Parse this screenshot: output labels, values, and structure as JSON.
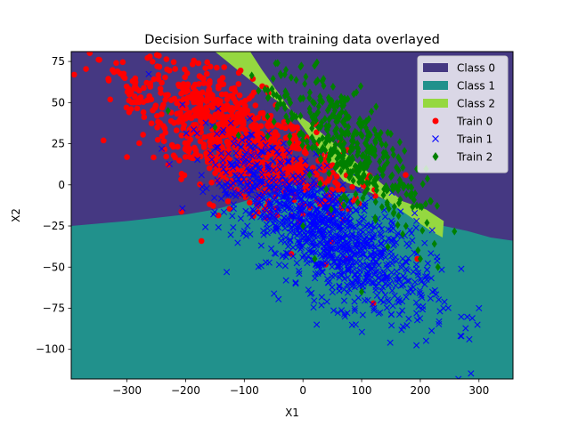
{
  "chart_data": {
    "type": "scatter",
    "title": "Decision Surface with training data overlayed",
    "xlabel": "X1",
    "ylabel": "X2",
    "xlim": [
      -395,
      358
    ],
    "ylim": [
      -118,
      81
    ],
    "xticks": [
      -300,
      -200,
      -100,
      0,
      100,
      200,
      300
    ],
    "yticks": [
      75,
      50,
      25,
      0,
      -25,
      -50,
      -75,
      -100
    ],
    "grid": false,
    "legend_position": "top-right",
    "regions": [
      {
        "name": "Class 0",
        "color": "#453882"
      },
      {
        "name": "Class 1",
        "color": "#21918c"
      },
      {
        "name": "Class 2",
        "color": "#95d840"
      }
    ],
    "class2_region_boundary": [
      [
        -150,
        81
      ],
      [
        -60,
        55
      ],
      [
        10,
        38
      ],
      [
        70,
        20
      ],
      [
        120,
        5
      ],
      [
        170,
        -10
      ],
      [
        210,
        -15
      ],
      [
        240,
        -22
      ],
      [
        238,
        -32
      ],
      [
        218,
        -28
      ],
      [
        185,
        -20
      ],
      [
        145,
        -10
      ],
      [
        100,
        -2
      ],
      [
        70,
        2
      ],
      [
        40,
        15
      ],
      [
        0,
        35
      ],
      [
        -40,
        55
      ],
      [
        -70,
        70
      ],
      [
        -90,
        81
      ]
    ],
    "class1_region_boundary_left": [
      [
        -395,
        -25
      ],
      [
        -300,
        -22
      ],
      [
        -200,
        -18
      ],
      [
        -150,
        -15
      ],
      [
        -100,
        -10
      ],
      [
        -50,
        -5
      ],
      [
        -20,
        0
      ],
      [
        10,
        0
      ],
      [
        50,
        -5
      ],
      [
        100,
        -5
      ],
      [
        150,
        -10
      ],
      [
        200,
        -18
      ],
      [
        240,
        -25
      ],
      [
        280,
        -28
      ],
      [
        320,
        -32
      ],
      [
        358,
        -34
      ]
    ],
    "series": [
      {
        "name": "Train 0",
        "marker": "circle",
        "color": "#ff0000",
        "clusters": [
          {
            "center": [
              -130,
              30
            ],
            "spread": [
              75,
              18
            ],
            "count": 700
          },
          {
            "center": [
              -20,
              15
            ],
            "spread": [
              60,
              12
            ],
            "count": 150
          },
          {
            "center": [
              -280,
              55
            ],
            "spread": [
              40,
              8
            ],
            "count": 40
          }
        ],
        "outliers": [
          [
            -340,
            27
          ],
          [
            -390,
            67
          ],
          [
            -55,
            42
          ],
          [
            175,
            6
          ],
          [
            120,
            -72
          ],
          [
            -20,
            -42
          ],
          [
            195,
            -45
          ]
        ]
      },
      {
        "name": "Train 1",
        "marker": "x",
        "color": "#0000ff",
        "clusters": [
          {
            "center": [
              60,
              -35
            ],
            "spread": [
              80,
              18
            ],
            "count": 900
          },
          {
            "center": [
              -60,
              0
            ],
            "spread": [
              60,
              14
            ],
            "count": 250
          }
        ],
        "outliers": [
          [
            300,
            -75
          ],
          [
            265,
            -118
          ],
          [
            -130,
            -53
          ],
          [
            -90,
            -30
          ],
          [
            270,
            -92
          ]
        ]
      },
      {
        "name": "Train 2",
        "marker": "diamond",
        "color": "#008000",
        "clusters": [
          {
            "center": [
              60,
              30
            ],
            "spread": [
              60,
              16
            ],
            "count": 350
          },
          {
            "center": [
              140,
              0
            ],
            "spread": [
              50,
              12
            ],
            "count": 60
          }
        ],
        "outliers": [
          [
            -110,
            30
          ],
          [
            -150,
            35
          ],
          [
            -230,
            45
          ],
          [
            -50,
            55
          ],
          [
            0,
            -25
          ],
          [
            20,
            -45
          ],
          [
            100,
            -65
          ],
          [
            170,
            -30
          ],
          [
            200,
            -45
          ],
          [
            230,
            -50
          ]
        ]
      }
    ]
  }
}
